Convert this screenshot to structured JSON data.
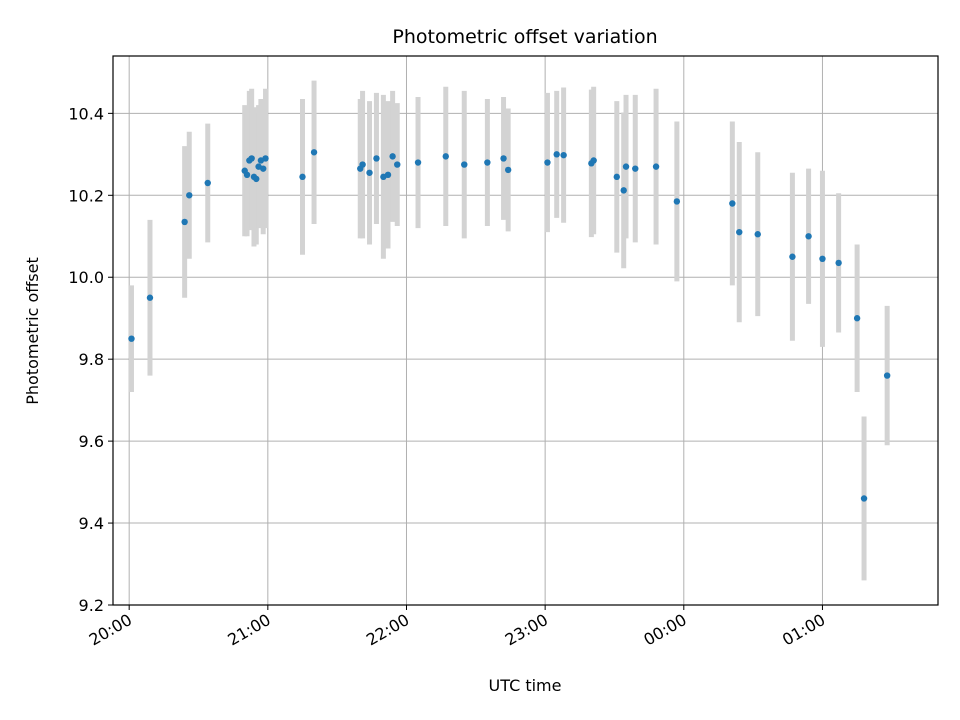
{
  "chart_data": {
    "type": "scatter",
    "title": "Photometric offset variation",
    "xlabel": "UTC time",
    "ylabel": "Photometric offset",
    "x_unit": "time (HH:MM, UTC)",
    "x_ticks": [
      "20:00",
      "21:00",
      "22:00",
      "23:00",
      "00:00",
      "01:00"
    ],
    "y_ticks": [
      "9.2",
      "9.4",
      "9.6",
      "9.8",
      "10.0",
      "10.2",
      "10.4"
    ],
    "xlim": [
      "19:53",
      "01:50"
    ],
    "ylim": [
      9.2,
      10.54
    ],
    "grid": true,
    "colors": {
      "points": "#1f77b4",
      "error_bars": "#d3d3d3",
      "grid": "#b0b0b0"
    },
    "series": [
      {
        "x": [
          "20:01",
          "20:09",
          "20:24",
          "20:26",
          "20:34",
          "20:50",
          "20:51",
          "20:52",
          "20:53",
          "20:54",
          "20:55",
          "20:56",
          "20:57",
          "20:58",
          "20:59",
          "21:15",
          "21:20",
          "21:40",
          "21:41",
          "21:44",
          "21:47",
          "21:50",
          "21:52",
          "21:54",
          "21:56",
          "22:05",
          "22:17",
          "22:25",
          "22:35",
          "22:42",
          "22:44",
          "23:01",
          "23:05",
          "23:08",
          "23:20",
          "23:21",
          "23:31",
          "23:34",
          "23:35",
          "23:39",
          "23:48",
          "23:57",
          "00:21",
          "00:24",
          "00:32",
          "00:47",
          "00:54",
          "01:00",
          "01:07",
          "01:15",
          "01:28"
        ],
        "y": [
          9.85,
          9.95,
          10.135,
          10.2,
          10.23,
          10.26,
          10.25,
          10.285,
          10.29,
          10.245,
          10.24,
          10.27,
          10.285,
          10.265,
          10.29,
          10.245,
          10.305,
          10.265,
          10.275,
          10.255,
          10.29,
          10.245,
          10.25,
          10.295,
          10.275,
          10.28,
          10.295,
          10.275,
          10.28,
          10.29,
          10.262,
          10.28,
          10.3,
          10.298,
          10.278,
          10.285,
          10.245,
          10.212,
          10.27,
          10.265,
          10.27,
          10.185,
          10.18,
          10.11,
          10.105,
          10.05,
          10.1,
          10.045,
          10.035,
          9.9,
          9.76
        ],
        "yerr": [
          0.13,
          0.19,
          0.185,
          0.155,
          0.145,
          0.16,
          0.15,
          0.17,
          0.17,
          0.17,
          0.16,
          0.15,
          0.15,
          0.16,
          0.17,
          0.19,
          0.175,
          0.17,
          0.18,
          0.175,
          0.16,
          0.2,
          0.18,
          0.16,
          0.15,
          0.16,
          0.17,
          0.18,
          0.155,
          0.15,
          0.15,
          0.17,
          0.155,
          0.165,
          0.18,
          0.18,
          0.185,
          0.19,
          0.175,
          0.18,
          0.19,
          0.195,
          0.2,
          0.22,
          0.2,
          0.205,
          0.165,
          0.215,
          0.17,
          0.18,
          0.17
        ]
      }
    ],
    "extra_point": {
      "x": "01:18",
      "y": 9.46,
      "yerr": 0.2
    }
  }
}
